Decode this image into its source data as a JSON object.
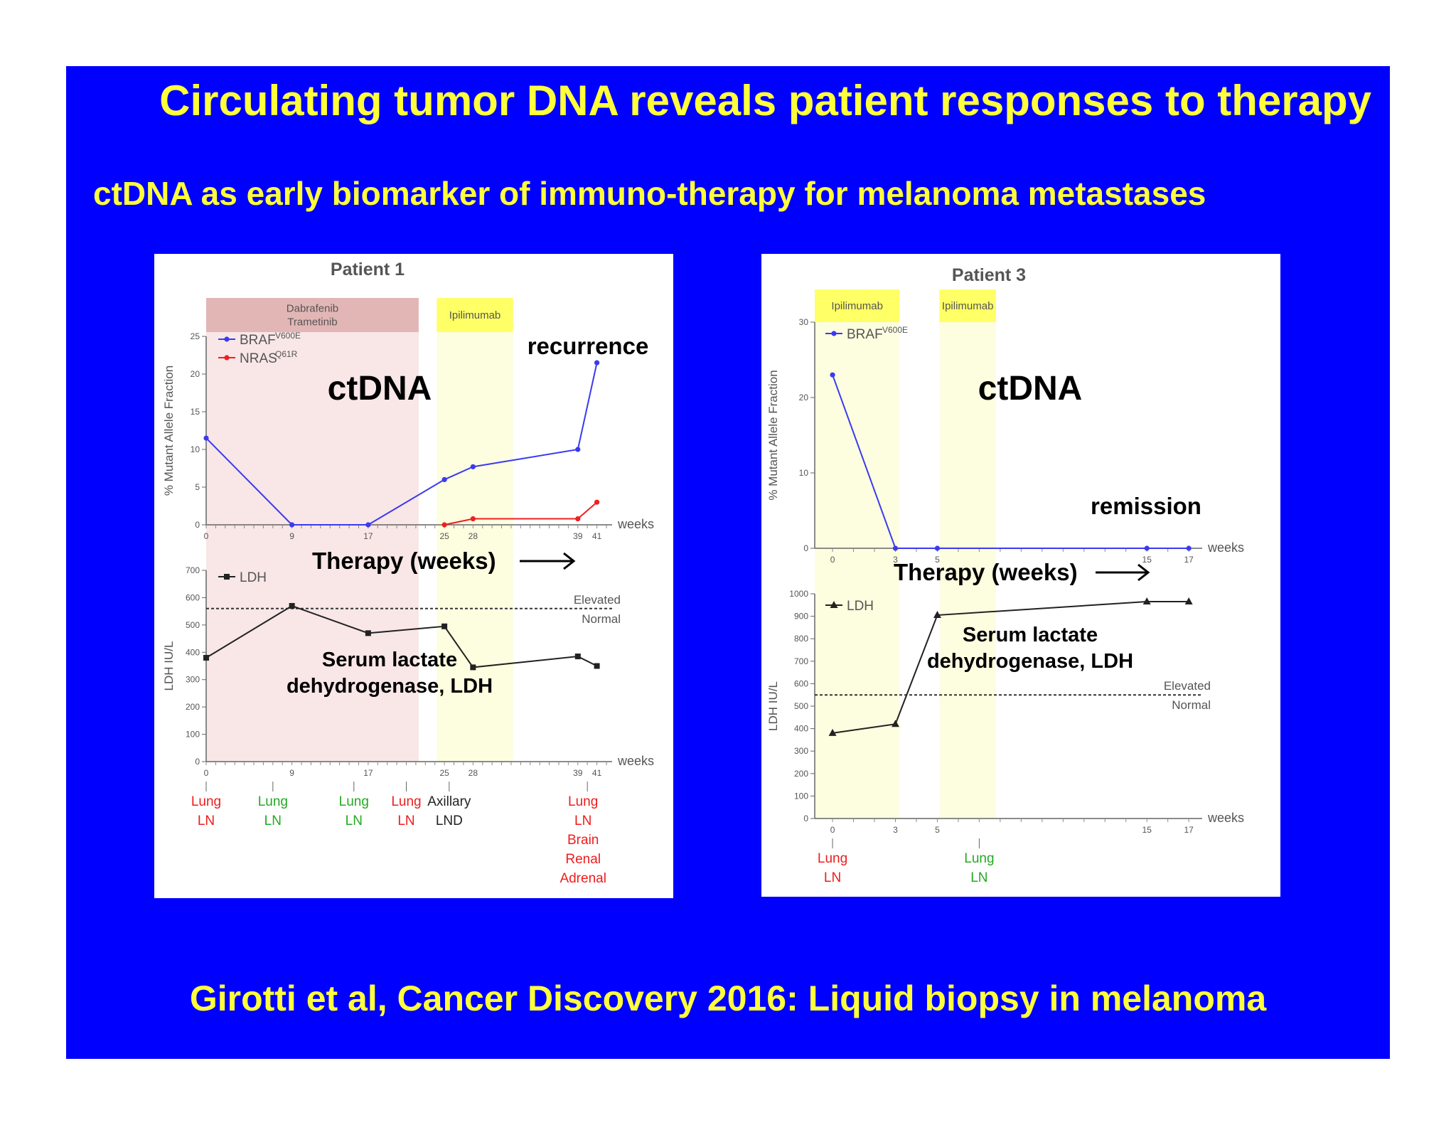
{
  "slide": {
    "title": "Circulating tumor DNA reveals patient responses to therapy",
    "subtitle": "ctDNA as early biomarker of immuno-therapy for melanoma metastases",
    "footer": "Girotti et al, Cancer Discovery 2016: Liquid biopsy in melanoma"
  },
  "chart_data": [
    {
      "type": "line",
      "title": "Patient 1",
      "panel": "ctDNA",
      "annotation": "recurrence",
      "ylabel": "% Mutant Allele Fraction",
      "xlabel": "weeks",
      "ylim": [
        0,
        25
      ],
      "yticks": [
        0,
        5,
        10,
        15,
        20,
        25
      ],
      "xlim": [
        0,
        42
      ],
      "xticks": [
        0,
        9,
        17,
        25,
        28,
        39,
        41
      ],
      "therapy_bands": [
        {
          "label": [
            "Dabrafenib",
            "Trametinib"
          ],
          "start": 0,
          "end": 22.3,
          "color": "#f9e6e6",
          "header_color": "#e3b6b6"
        },
        {
          "label": [
            "Ipilimumab"
          ],
          "start": 24.2,
          "end": 32.2,
          "color": "#fdfde0",
          "header_color": "#ffff66"
        }
      ],
      "series": [
        {
          "name": "BRAF",
          "superscript": "V600E",
          "color": "#3a3af0",
          "marker": "circle",
          "x": [
            0,
            9,
            17,
            25,
            28,
            39,
            41
          ],
          "values": [
            11.5,
            0,
            0,
            6,
            7.7,
            10,
            21.5
          ]
        },
        {
          "name": "NRAS",
          "superscript": "Q61R",
          "color": "#ee2020",
          "marker": "circle",
          "x": [
            25,
            28,
            39,
            41
          ],
          "values": [
            0,
            0.8,
            0.8,
            3
          ]
        }
      ]
    },
    {
      "type": "line",
      "panel": "Serum lactate dehydrogenase, LDH",
      "ylabel": "LDH IU/L",
      "xlabel": "weeks",
      "ylim": [
        0,
        700
      ],
      "yticks": [
        0,
        100,
        200,
        300,
        400,
        500,
        600,
        700
      ],
      "xticks": [
        0,
        9,
        17,
        25,
        28,
        39,
        41
      ],
      "threshold": {
        "value": 560,
        "above_label": "Elevated",
        "below_label": "Normal"
      },
      "therapy_arrow_label": "Therapy (weeks)",
      "series": [
        {
          "name": "LDH",
          "color": "#222222",
          "marker": "square",
          "x": [
            0,
            9,
            17,
            25,
            28,
            39,
            41
          ],
          "values": [
            380,
            570,
            470,
            495,
            345,
            385,
            350
          ]
        }
      ],
      "events": [
        {
          "x": 0,
          "lines": [
            "Lung",
            "LN"
          ],
          "color": "#ee1c1c",
          "offset": 0
        },
        {
          "x": 7,
          "lines": [
            "Lung",
            "LN"
          ],
          "color": "#22aa22",
          "offset": 0
        },
        {
          "x": 15.5,
          "lines": [
            "Lung",
            "LN"
          ],
          "color": "#22aa22",
          "offset": 0
        },
        {
          "x": 21,
          "lines": [
            "Lung",
            "LN"
          ],
          "color": "#ee1c1c",
          "offset": 0
        },
        {
          "x": 25.5,
          "lines": [
            "Axillary",
            "LND"
          ],
          "color": "#222222",
          "offset": 0
        },
        {
          "x": 40,
          "lines": [
            "Lung",
            "LN",
            "Brain",
            "Renal",
            "Adrenal"
          ],
          "color": "#ee1c1c",
          "offset": -6
        }
      ]
    },
    {
      "type": "line",
      "title": "Patient 3",
      "panel": "ctDNA",
      "annotation": "remission",
      "ylabel": "% Mutant Allele Fraction",
      "xlabel": "weeks",
      "ylim": [
        0,
        30
      ],
      "yticks": [
        0,
        10,
        20,
        30
      ],
      "xlim": [
        0,
        18
      ],
      "xticks": [
        0,
        3,
        5,
        15,
        17
      ],
      "therapy_bands": [
        {
          "label": [
            "Ipilimumab"
          ],
          "start": -0.85,
          "end": 3.2,
          "color": "#fdfde0",
          "header_color": "#ffff66"
        },
        {
          "label": [
            "Ipilimumab"
          ],
          "start": 5.1,
          "end": 7.8,
          "color": "#fdfde0",
          "header_color": "#ffff66"
        }
      ],
      "series": [
        {
          "name": "BRAF",
          "superscript": "V600E",
          "color": "#3a3af0",
          "marker": "circle",
          "x": [
            0,
            3,
            5,
            15,
            17
          ],
          "values": [
            23,
            0,
            0,
            0,
            0
          ]
        }
      ]
    },
    {
      "type": "line",
      "panel": "Serum lactate dehydrogenase, LDH",
      "ylabel": "LDH IU/L",
      "xlabel": "weeks",
      "ylim": [
        0,
        1000
      ],
      "yticks": [
        0,
        100,
        200,
        300,
        400,
        500,
        600,
        700,
        800,
        900,
        1000
      ],
      "xticks": [
        0,
        3,
        5,
        15,
        17
      ],
      "threshold": {
        "value": 550,
        "above_label": "Elevated",
        "below_label": "Normal"
      },
      "therapy_arrow_label": "Therapy (weeks)",
      "series": [
        {
          "name": "LDH",
          "color": "#222222",
          "marker": "triangle",
          "x": [
            0,
            3,
            5,
            15,
            17
          ],
          "values": [
            380,
            420,
            905,
            965,
            965
          ]
        }
      ],
      "events": [
        {
          "x": 0,
          "lines": [
            "Lung",
            "LN"
          ],
          "color": "#ee1c1c",
          "offset": 0
        },
        {
          "x": 7,
          "lines": [
            "Lung",
            "LN"
          ],
          "color": "#22aa22",
          "offset": 0
        }
      ]
    }
  ]
}
